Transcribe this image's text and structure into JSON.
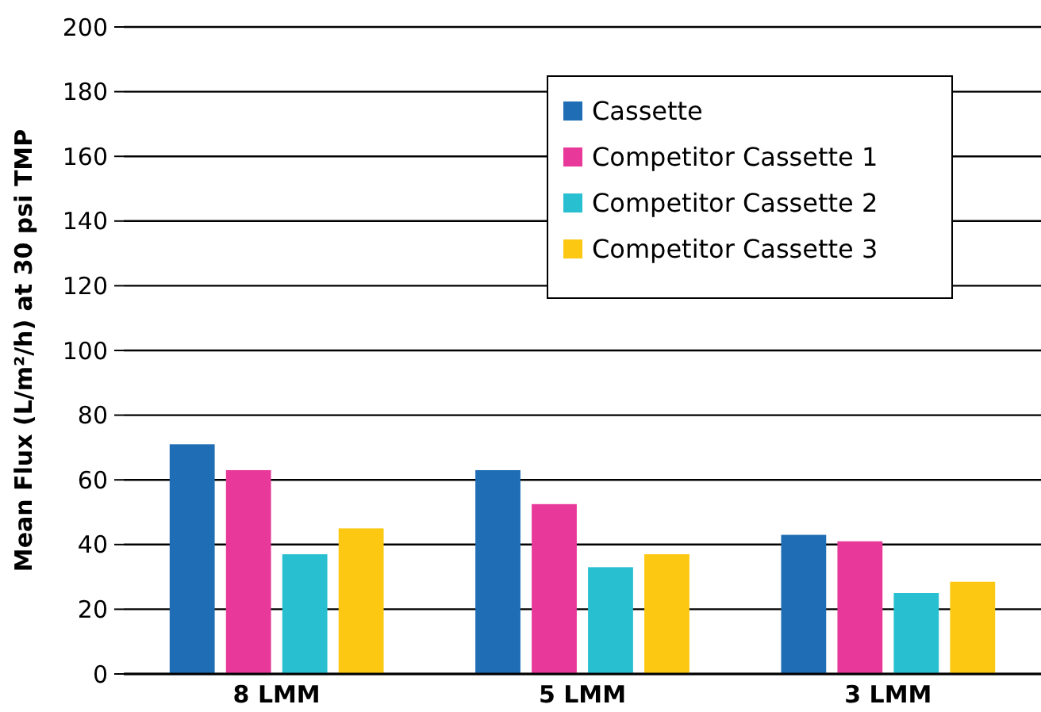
{
  "chart_data": {
    "type": "bar",
    "ylabel": "Mean Flux (L/m²/h) at 30 psi TMP",
    "categories": [
      "8 LMM",
      "5 LMM",
      "3 LMM"
    ],
    "series": [
      {
        "name": "Cassette",
        "color": "#1f6db5",
        "values": [
          71,
          63,
          43
        ]
      },
      {
        "name": "Competitor Cassette 1",
        "color": "#e8399a",
        "values": [
          63,
          52.5,
          41
        ]
      },
      {
        "name": "Competitor Cassette 2",
        "color": "#28c0d0",
        "values": [
          37,
          33,
          25
        ]
      },
      {
        "name": "Competitor Cassette 3",
        "color": "#fcc812",
        "values": [
          45,
          37,
          28.5
        ]
      }
    ],
    "ylim": [
      0,
      200
    ],
    "yticks": [
      0,
      20,
      40,
      60,
      80,
      100,
      120,
      140,
      160,
      180,
      200
    ],
    "grid": "y",
    "legend": "top right"
  }
}
